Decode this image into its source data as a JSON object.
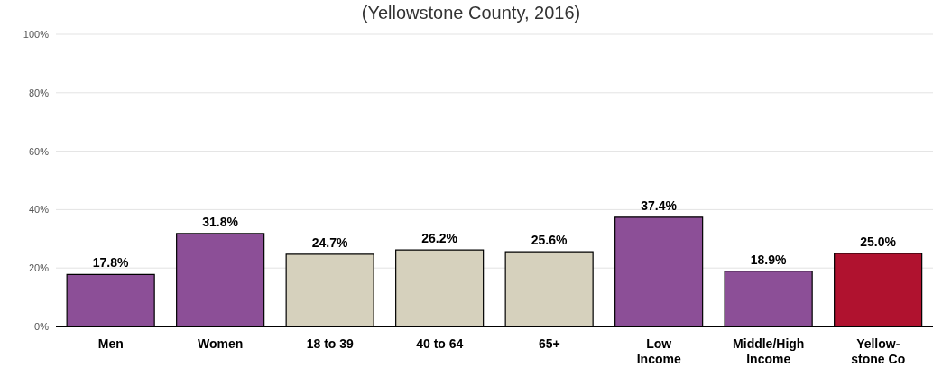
{
  "chart_data": {
    "type": "bar",
    "subtitle": "(Yellowstone County, 2016)",
    "categories": [
      "Men",
      "Women",
      "18 to 39",
      "40 to 64",
      "65+",
      "Low\nIncome",
      "Middle/High\nIncome",
      "Yellow-\nstone Co"
    ],
    "values": [
      17.8,
      31.8,
      24.7,
      26.2,
      25.6,
      37.4,
      18.9,
      25.0
    ],
    "colors": [
      "#8c4f97",
      "#8c4f97",
      "#d6d1bd",
      "#d6d1bd",
      "#d6d1bd",
      "#8c4f97",
      "#8c4f97",
      "#b0122f"
    ],
    "value_labels": [
      "17.8%",
      "31.8%",
      "24.7%",
      "26.2%",
      "25.6%",
      "37.4%",
      "18.9%",
      "25.0%"
    ],
    "ylim": [
      0,
      100
    ],
    "yticks": [
      {
        "value": 0,
        "label": "0%"
      },
      {
        "value": 20,
        "label": "20%"
      },
      {
        "value": 40,
        "label": "40%"
      },
      {
        "value": 60,
        "label": "60%"
      },
      {
        "value": 80,
        "label": "80%"
      },
      {
        "value": 100,
        "label": "100%"
      }
    ],
    "grid": "y"
  }
}
